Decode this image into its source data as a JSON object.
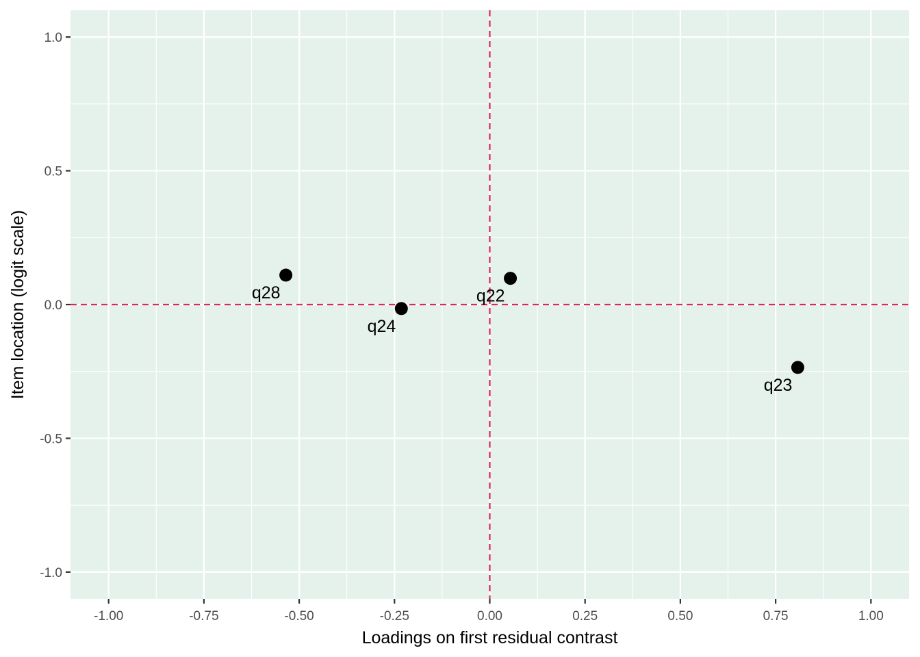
{
  "chart_data": {
    "type": "scatter",
    "title": "",
    "xlabel": "Loadings on first residual contrast",
    "ylabel": "Item location (logit scale)",
    "xlim": [
      -1.1,
      1.1
    ],
    "ylim": [
      -1.1,
      1.1
    ],
    "x_ticks": [
      -1.0,
      -0.75,
      -0.5,
      -0.25,
      0.0,
      0.25,
      0.5,
      0.75,
      1.0
    ],
    "x_tick_labels": [
      "-1.00",
      "-0.75",
      "-0.50",
      "-0.25",
      "0.00",
      "0.25",
      "0.50",
      "0.75",
      "1.00"
    ],
    "y_ticks": [
      -1.0,
      -0.5,
      0.0,
      0.5,
      1.0
    ],
    "y_tick_labels": [
      "-1.0",
      "-0.5",
      "0.0",
      "0.5",
      "1.0"
    ],
    "grid": true,
    "reference_lines": {
      "x": 0,
      "y": 0,
      "color": "#e0245e",
      "style": "dashed"
    },
    "colors": {
      "panel_background": "#e5f2eb",
      "grid": "#ffffff",
      "point": "#000000"
    },
    "points": [
      {
        "label": "q28",
        "x": -0.535,
        "y": 0.11
      },
      {
        "label": "q24",
        "x": -0.232,
        "y": -0.015
      },
      {
        "label": "q22",
        "x": 0.054,
        "y": 0.098
      },
      {
        "label": "q23",
        "x": 0.808,
        "y": -0.235
      }
    ]
  }
}
